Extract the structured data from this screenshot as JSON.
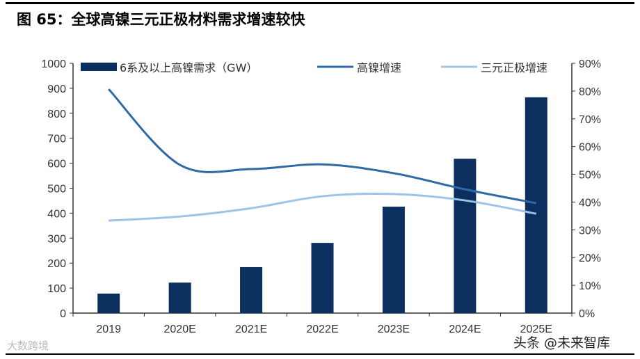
{
  "title": "图 65：全球高镍三元正极材料需求增速较快",
  "watermarks": [
    "大数跨境",
    "头条 @未来智库"
  ],
  "chart_data": {
    "type": "bar+line",
    "categories": [
      "2019",
      "2020E",
      "2021E",
      "2022E",
      "2023E",
      "2024E",
      "2025E"
    ],
    "series": [
      {
        "name": "6系及以上高镍需求（GW）",
        "type": "bar",
        "axis": "left",
        "color": "#0b2f5e",
        "values": [
          78,
          122,
          184,
          281,
          426,
          618,
          864
        ]
      },
      {
        "name": "高镍增速",
        "type": "line",
        "axis": "right",
        "color": "#2e6aa8",
        "values": [
          0.807,
          0.534,
          0.519,
          0.536,
          0.504,
          0.446,
          0.396
        ]
      },
      {
        "name": "三元正极增速",
        "type": "line",
        "axis": "right",
        "color": "#9dc3e6",
        "values": [
          0.333,
          0.348,
          0.378,
          0.421,
          0.429,
          0.406,
          0.358
        ]
      }
    ],
    "y_left": {
      "range": [
        0,
        1000
      ],
      "ticks": [
        "0",
        "100",
        "200",
        "300",
        "400",
        "500",
        "600",
        "700",
        "800",
        "900",
        "1000"
      ]
    },
    "y_right": {
      "range": [
        0,
        0.9
      ],
      "ticks": [
        "0%",
        "10%",
        "20%",
        "30%",
        "40%",
        "50%",
        "60%",
        "70%",
        "80%",
        "90%"
      ]
    },
    "legend": "top",
    "grid": false
  }
}
